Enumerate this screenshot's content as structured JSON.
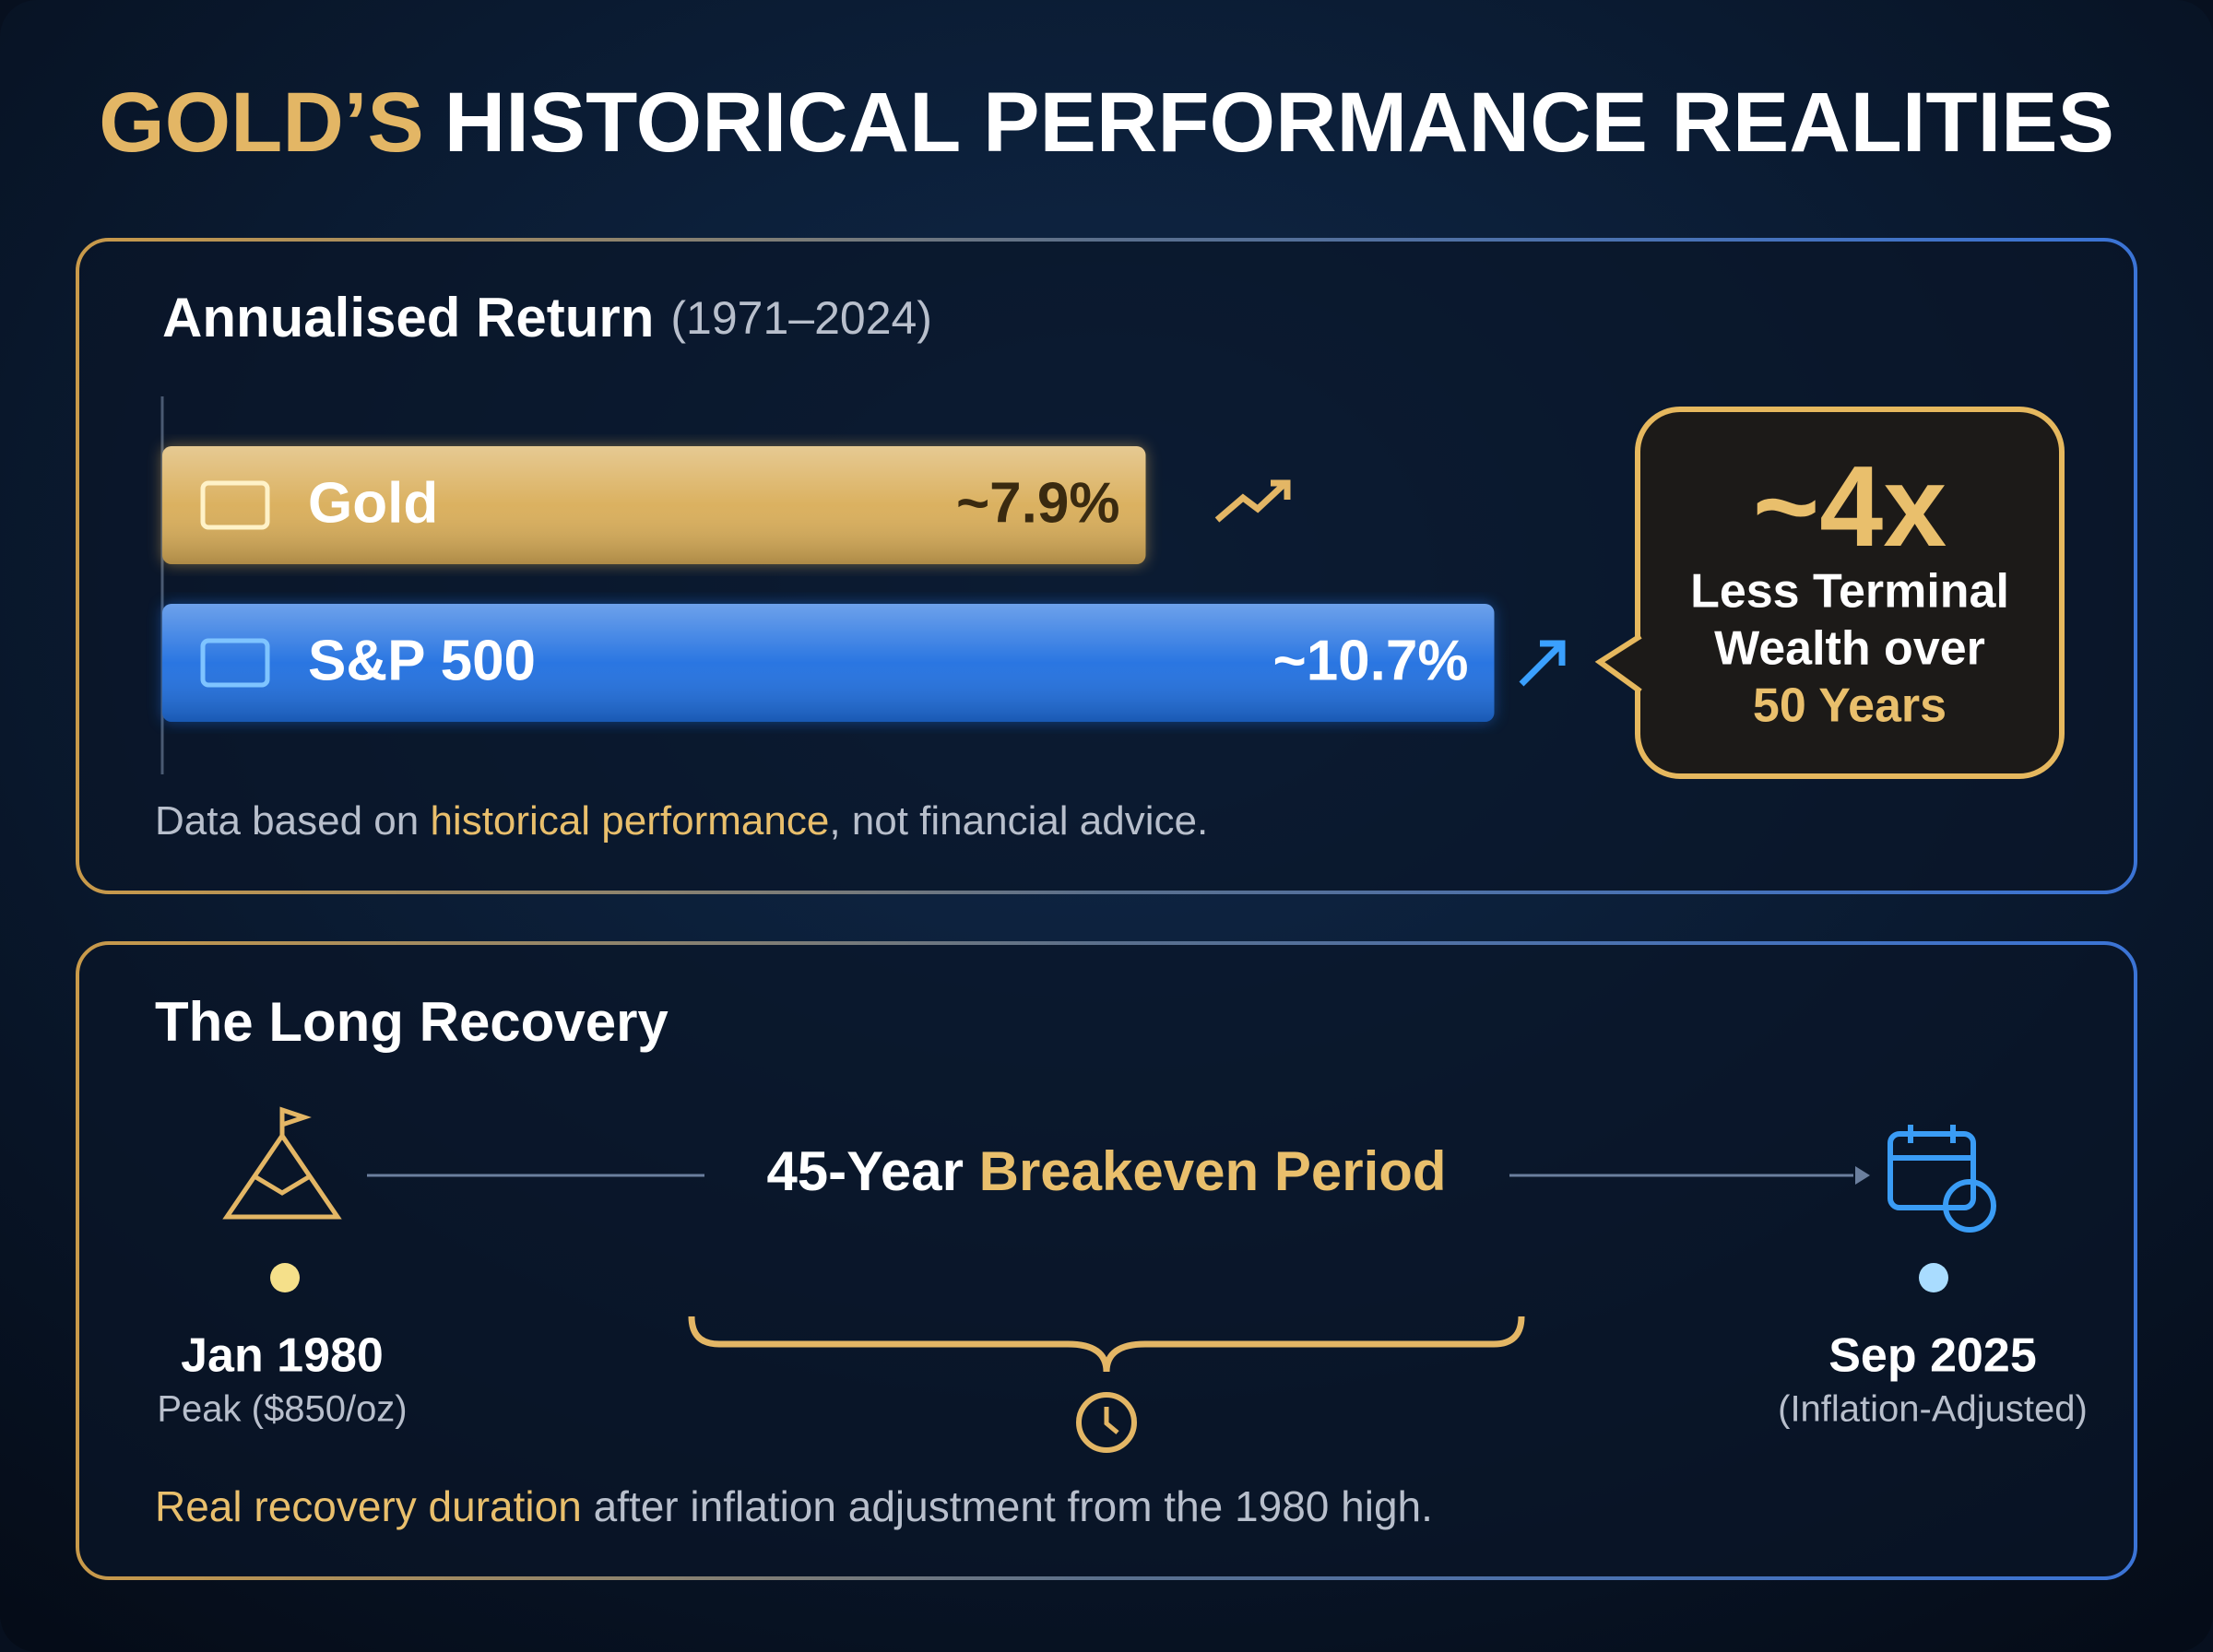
{
  "title": {
    "highlight": "GOLD’S",
    "rest": "HISTORICAL PERFORMANCE REALITIES"
  },
  "chart_data": {
    "type": "bar",
    "orientation": "horizontal",
    "title": "Annualised Return",
    "subtitle": "(1971–2024)",
    "categories": [
      "Gold",
      "S&P 500"
    ],
    "values": [
      7.9,
      10.7
    ],
    "value_labels": [
      "~7.9%",
      "~10.7%"
    ],
    "colors": [
      "#d9ad58",
      "#1f6fe0"
    ]
  },
  "callout": {
    "headline": "~4x",
    "lines": [
      "Less Terminal",
      "Wealth over"
    ],
    "highlight": "50 Years"
  },
  "footnote": {
    "before": "Data based on ",
    "highlight": "historical performance",
    "after": ", not financial advice."
  },
  "recovery": {
    "title": "The Long Recovery",
    "period": {
      "before": "45-Year ",
      "highlight": "Breakeven Period"
    },
    "start": {
      "date": "Jan 1980",
      "note": "Peak ($850/oz)"
    },
    "end": {
      "date": "Sep 2025",
      "note": "(Inflation-Adjusted)"
    },
    "footnote": {
      "highlight": "Real recovery duration",
      "after": " after inflation adjustment from the 1980 high."
    }
  }
}
